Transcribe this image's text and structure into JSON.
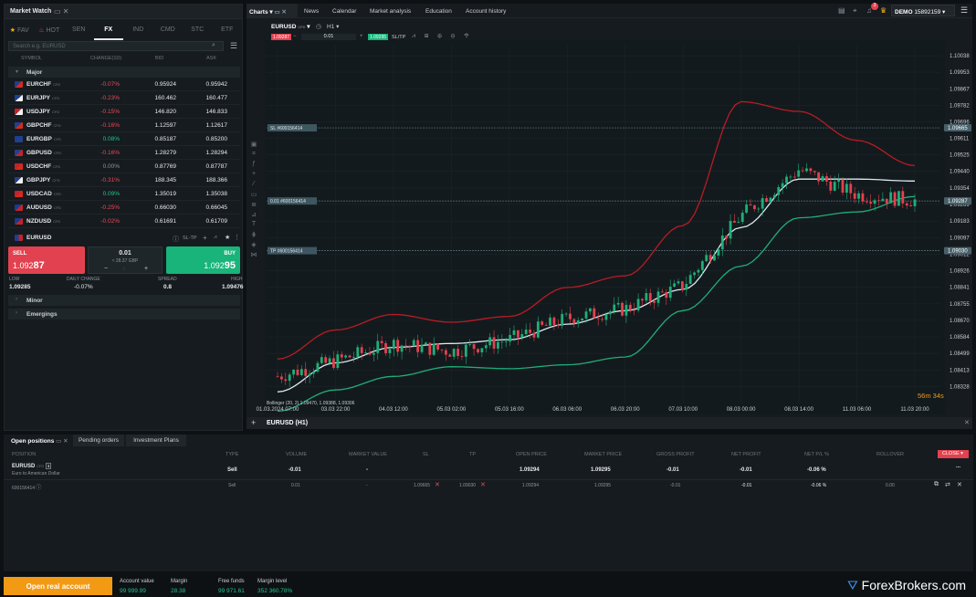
{
  "market_watch": {
    "title": "Market Watch",
    "tabs": [
      "FAV",
      "HOT",
      "SEN",
      "FX",
      "IND",
      "CMD",
      "STC",
      "ETF"
    ],
    "active_tab": "FX",
    "search_placeholder": "Search e.g. EURUSD",
    "columns": [
      "SYMBOL",
      "CHANGE(1D)",
      "BID",
      "ASK"
    ],
    "group_major": "Major",
    "group_minor": "Minor",
    "group_emergings": "Emergings",
    "cfd_tag": "CFD",
    "rows": [
      {
        "symbol": "EURCHF",
        "change": "-0.07%",
        "bid": "0.95924",
        "ask": "0.95942",
        "dir": "neg"
      },
      {
        "symbol": "EURJPY",
        "change": "-0.23%",
        "bid": "160.462",
        "ask": "160.477",
        "dir": "neg"
      },
      {
        "symbol": "USDJPY",
        "change": "-0.15%",
        "bid": "146.820",
        "ask": "146.833",
        "dir": "neg"
      },
      {
        "symbol": "GBPCHF",
        "change": "-0.16%",
        "bid": "1.12597",
        "ask": "1.12617",
        "dir": "neg"
      },
      {
        "symbol": "EURGBP",
        "change": "0.08%",
        "bid": "0.85187",
        "ask": "0.85200",
        "dir": "pos"
      },
      {
        "symbol": "GBPUSD",
        "change": "-0.16%",
        "bid": "1.28279",
        "ask": "1.28294",
        "dir": "neg"
      },
      {
        "symbol": "USDCHF",
        "change": "0.00%",
        "bid": "0.87769",
        "ask": "0.87787",
        "dir": "neu"
      },
      {
        "symbol": "GBPJPY",
        "change": "-0.31%",
        "bid": "188.345",
        "ask": "188.366",
        "dir": "neg"
      },
      {
        "symbol": "USDCAD",
        "change": "0.09%",
        "bid": "1.35019",
        "ask": "1.35038",
        "dir": "pos"
      },
      {
        "symbol": "AUDUSD",
        "change": "-0.25%",
        "bid": "0.66030",
        "ask": "0.66045",
        "dir": "neg"
      },
      {
        "symbol": "NZDUSD",
        "change": "-0.02%",
        "bid": "0.61691",
        "ask": "0.61709",
        "dir": "neg"
      }
    ],
    "selected": {
      "symbol": "EURUSD",
      "sltp": "SL-TP",
      "sell_label": "SELL",
      "sell_price_a": "1.092",
      "sell_price_b": "87",
      "buy_label": "BUY",
      "buy_price_a": "1.092",
      "buy_price_b": "95",
      "volume": "0.01",
      "value": "≈ 28.37 GBP",
      "low_label": "LOW",
      "low": "1.09285",
      "daily_change_label": "DAILY CHANGE",
      "daily_change": "-0.07%",
      "spread_label": "SPREAD",
      "spread": "0.8",
      "high_label": "HIGH",
      "high": "1.09476"
    }
  },
  "topbar": {
    "tabs": [
      "Charts",
      "News",
      "Calendar",
      "Market analysis",
      "Education",
      "Account history"
    ],
    "notif_count": "3",
    "account_mode": "DEMO",
    "account_id": "15892159"
  },
  "chart": {
    "symbol": "EURUSD",
    "symbol_tag": "CFD",
    "timeframe": "H1",
    "sell": "1.09287",
    "buy": "1.09295",
    "volume": "0.01",
    "sltp": "SL/TP",
    "sl_tag": "SL  #600156414",
    "pos_tag": "0.01  #600156414",
    "tp_tag": "TP  #600156414",
    "indicator": "Bollinger (20, 2)  1.09470, 1.09388, 1.09306",
    "timer": "56m 34s",
    "footer_symbol": "EURUSD (H1)",
    "y_ticks": [
      "1.10038",
      "1.09953",
      "1.09867",
      "1.09782",
      "1.09696",
      "1.09611",
      "1.09525",
      "1.09440",
      "1.09354",
      "1.09269",
      "1.09183",
      "1.09097",
      "1.09012",
      "1.08926",
      "1.08841",
      "1.08755",
      "1.08670",
      "1.08584",
      "1.08499",
      "1.08413",
      "1.08328"
    ],
    "price_sl": "1.09665",
    "price_now": "1.09287",
    "price_tp": "1.09030",
    "x_ticks": [
      "01.03.2024 07:00",
      "03.03 22:00",
      "04.03 12:00",
      "05.03 02:00",
      "05.03 16:00",
      "06.03 06:00",
      "06.03 20:00",
      "07.03 10:00",
      "08.03 00:00",
      "08.03 14:00",
      "11.03 06:00",
      "11.03 20:00"
    ]
  },
  "chart_data": {
    "type": "candlestick",
    "title": "",
    "symbol": "EURUSD",
    "timeframe": "H1",
    "ylim": [
      1.0824,
      1.1009
    ],
    "x": [
      "01.03.2024 07:00",
      "03.03 22:00",
      "04.03 12:00",
      "05.03 02:00",
      "05.03 16:00",
      "06.03 06:00",
      "06.03 20:00",
      "07.03 10:00",
      "08.03 00:00",
      "08.03 14:00",
      "11.03 06:00",
      "11.03 20:00"
    ],
    "close": [
      1.0838,
      1.0846,
      1.0855,
      1.0851,
      1.0857,
      1.0868,
      1.0873,
      1.0885,
      1.0921,
      1.0945,
      1.0932,
      1.0929
    ],
    "series": [
      {
        "name": "",
        "role": "upper",
        "values": [
          1.0847,
          1.0862,
          1.087,
          1.0866,
          1.0869,
          1.0884,
          1.089,
          1.0916,
          1.098,
          1.0975,
          1.096,
          1.0947
        ]
      },
      {
        "name": "",
        "role": "middle",
        "values": [
          1.083,
          1.0845,
          1.0853,
          1.0855,
          1.0857,
          1.0865,
          1.0872,
          1.0883,
          1.0915,
          1.094,
          1.094,
          1.0939
        ]
      },
      {
        "name": "",
        "role": "lower",
        "values": [
          1.082,
          1.0831,
          1.0838,
          1.0843,
          1.0842,
          1.0844,
          1.0848,
          1.0872,
          1.0895,
          1.092,
          1.0923,
          1.0931
        ]
      }
    ],
    "levels": {
      "sl": 1.09665,
      "position": 1.09287,
      "tp": 1.0903
    }
  },
  "positions": {
    "tabs": [
      "Open positions",
      "Pending orders",
      "Investment Plans"
    ],
    "columns": [
      "POSITION",
      "TYPE",
      "VOLUME",
      "MARKET VALUE",
      "SL",
      "TP",
      "OPEN PRICE",
      "MARKET PRICE",
      "GROSS PROFIT",
      "NET PROFIT",
      "NET P/L %",
      "ROLLOVER"
    ],
    "close_label": "CLOSE",
    "main": {
      "symbol": "EURUSD",
      "tag": "CFD",
      "count": "1",
      "desc": "Euro to American Dollar",
      "type": "Sell",
      "volume": "-0.01",
      "market_value": "-",
      "open_price": "1.09294",
      "market_price": "1.09295",
      "gross": "-0.01",
      "net": "-0.01",
      "net_pct": "-0.06 %",
      "more": "..."
    },
    "detail": {
      "id": "600156414",
      "type": "Sell",
      "volume": "0.01",
      "market_value": "-",
      "sl": "1.09665",
      "tp": "1.09030",
      "open_price": "1.09294",
      "market_price": "1.09295",
      "gross": "-0.01",
      "net": "-0.01",
      "net_pct": "-0.06 %",
      "rollover": "0.00"
    }
  },
  "footer": {
    "open_real": "Open real account",
    "items": [
      {
        "label": "Account value",
        "value": "99 999.99"
      },
      {
        "label": "Margin",
        "value": "28.38"
      },
      {
        "label": "Free funds",
        "value": "99 971.61"
      },
      {
        "label": "Margin level",
        "value": "352 360.78%"
      }
    ],
    "brand": "ForexBrokers.com"
  },
  "colors": {
    "sell": "#e2424f",
    "buy": "#19b47a",
    "accent": "#f39a15",
    "upper_band": "#b71c25",
    "middle_band": "#dbe9f2",
    "lower_band": "#1fae78"
  }
}
